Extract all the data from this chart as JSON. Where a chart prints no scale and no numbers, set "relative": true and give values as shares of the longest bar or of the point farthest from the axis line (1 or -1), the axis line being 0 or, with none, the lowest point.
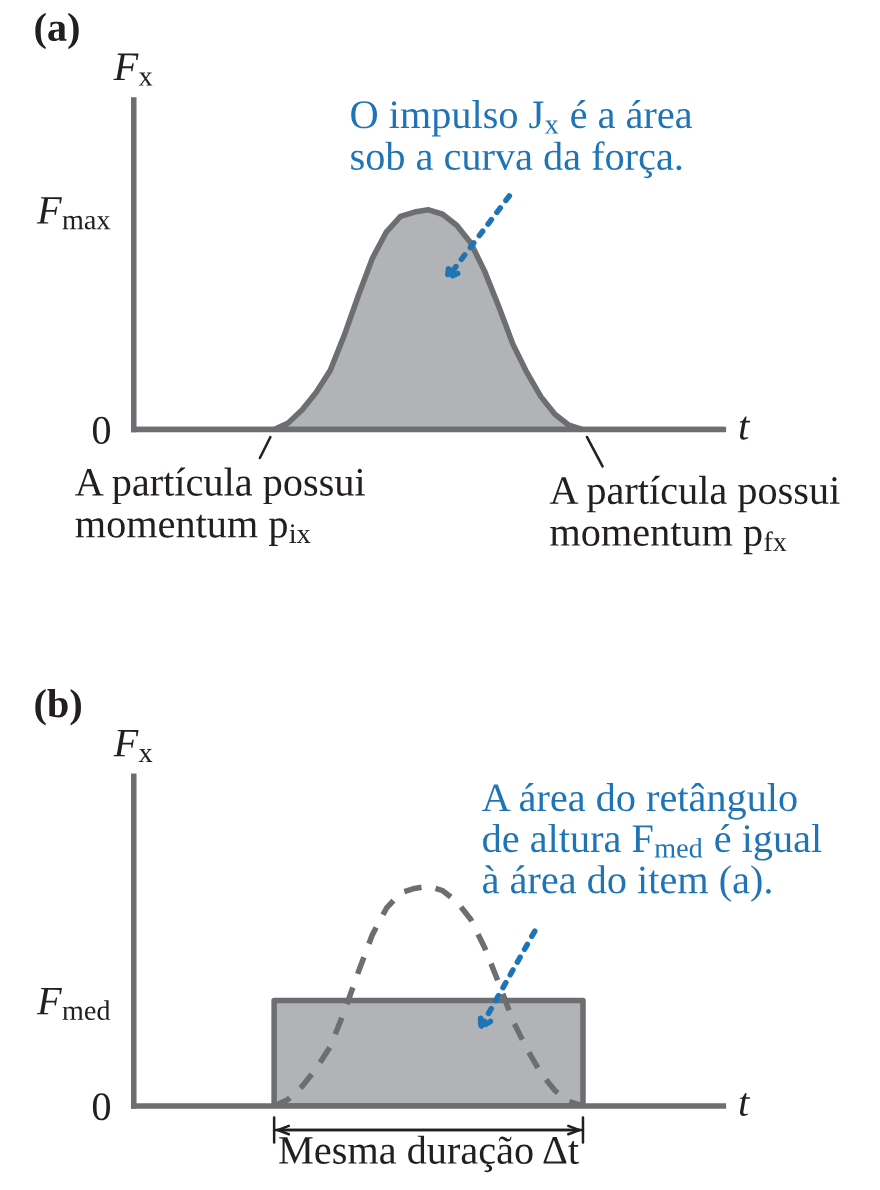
{
  "chart_data": [
    {
      "type": "area",
      "title": "(a)",
      "xlabel": "t",
      "ylabel": "F$_{x}$",
      "relative": true,
      "categories": [
        null,
        null,
        null,
        null,
        null,
        null,
        null,
        null,
        null,
        null,
        null,
        null,
        null,
        null,
        null,
        null,
        null,
        null,
        null,
        null,
        null,
        null,
        null,
        null,
        null,
        null,
        null,
        null,
        null,
        null,
        null,
        null,
        null,
        null,
        null,
        null,
        null,
        null,
        null,
        null,
        null,
        null,
        null
      ],
      "series": [
        {
          "color": "#b2b3b6",
          "values": [
            0,
            0,
            0,
            0,
            0,
            0,
            0,
            0,
            0,
            0,
            0,
            0.03,
            0.09,
            0.17,
            0.27,
            0.43,
            0.61,
            0.78,
            0.9,
            0.97,
            0.99,
            1,
            0.98,
            0.93,
            0.85,
            0.72,
            0.56,
            0.39,
            0.26,
            0.15,
            0.07,
            0.02,
            0,
            0,
            0,
            0,
            0,
            0,
            0,
            0,
            0,
            0,
            0
          ]
        }
      ],
      "annotations": [
        "0",
        "F$_{max}$",
        "O impulso J$_{x}$ é a área\nsob a curva da força.",
        "A partícula possui\nmomentum p$_{ix}$",
        "A partícula possui\nmomentum p$_{fx}$"
      ]
    },
    {
      "type": "area",
      "title": "(b)",
      "xlabel": "t",
      "ylabel": "F$_{x}$",
      "relative": true,
      "categories": [
        null,
        null,
        null,
        null,
        null,
        null,
        null,
        null,
        null,
        null,
        null,
        null,
        null,
        null,
        null,
        null,
        null,
        null,
        null,
        null,
        null,
        null,
        null,
        null,
        null,
        null,
        null,
        null,
        null,
        null,
        null,
        null,
        null,
        null,
        null,
        null,
        null,
        null,
        null,
        null,
        null,
        null,
        null
      ],
      "series": [
        {
          "color": "#b2b3b6",
          "values": [
            null,
            null,
            null,
            null,
            null,
            null,
            null,
            null,
            null,
            null,
            0.48,
            0.48,
            0.48,
            0.48,
            0.48,
            0.48,
            0.48,
            0.48,
            0.48,
            0.48,
            0.48,
            0.48,
            0.48,
            0.48,
            0.48,
            0.48,
            0.48,
            0.48,
            0.48,
            0.48,
            0.48,
            0.48,
            0.48,
            null,
            null,
            null,
            null,
            null,
            null,
            null,
            null,
            null,
            null
          ]
        },
        {
          "type": "line",
          "color": "#6d6e71",
          "line_style": "dashed",
          "values": [
            null,
            null,
            null,
            null,
            null,
            null,
            null,
            null,
            null,
            null,
            0,
            0.03,
            0.09,
            0.17,
            0.27,
            0.43,
            0.61,
            0.78,
            0.9,
            0.97,
            0.99,
            1,
            0.98,
            0.93,
            0.85,
            0.72,
            0.56,
            0.39,
            0.26,
            0.15,
            0.07,
            0.02,
            0,
            null,
            null,
            null,
            null,
            null,
            null,
            null,
            null,
            null,
            null
          ]
        }
      ],
      "annotations": [
        "0",
        "F$_{med}$",
        "A área do retângulo\nde altura F$_{med}$ é igual\nà área do item (a).",
        "Mesma duração Δt"
      ]
    }
  ]
}
